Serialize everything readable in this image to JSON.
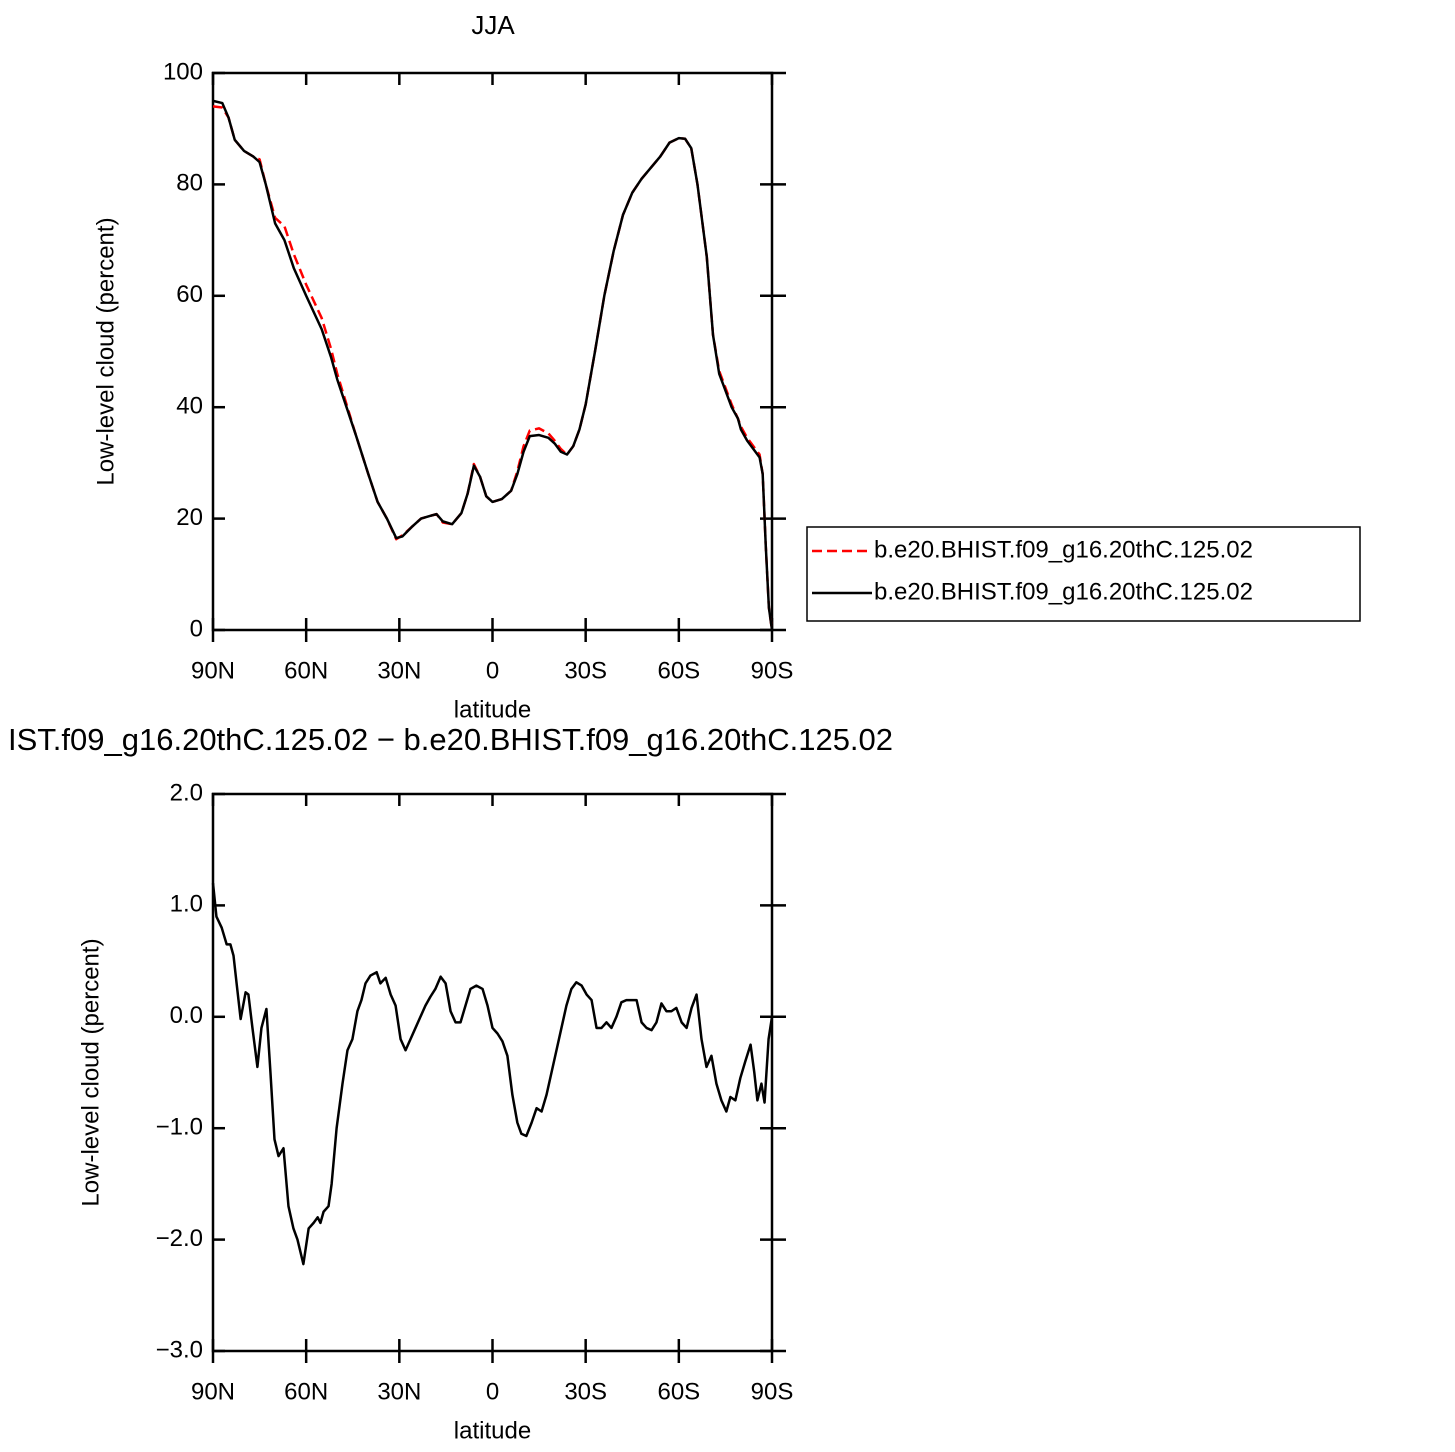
{
  "chart_data": [
    {
      "type": "line",
      "title": "JJA",
      "xlabel": "latitude",
      "ylabel": "Low-level cloud (percent)",
      "x": [
        90,
        87,
        85,
        83,
        80,
        77,
        75,
        73,
        70,
        67,
        64,
        60,
        55,
        52,
        50,
        47,
        44,
        40,
        37,
        34,
        31,
        29,
        26,
        23,
        20,
        18,
        16,
        13,
        10,
        8,
        6,
        4,
        2,
        0,
        -3,
        -6,
        -8,
        -10,
        -12,
        -15,
        -18,
        -20,
        -22,
        -24,
        -26,
        -28,
        -30,
        -33,
        -36,
        -39,
        -42,
        -45,
        -48,
        -51,
        -54,
        -57,
        -60,
        -62,
        -64,
        -66,
        -69,
        -71,
        -73,
        -75,
        -77,
        -79,
        -80,
        -82,
        -84,
        -86,
        -87,
        -88,
        -89,
        -90
      ],
      "series": [
        {
          "name": "b.e20.BHIST.f09_g16.20thC.125.02",
          "color": "#ff0000",
          "dash": true,
          "values": [
            94,
            93.8,
            92,
            88,
            86,
            85,
            84.5,
            80,
            74,
            72.5,
            67.5,
            62,
            56,
            50.5,
            46,
            40.5,
            35,
            28,
            23,
            20,
            16.3,
            17,
            18.5,
            20,
            20.5,
            20.8,
            19.3,
            19,
            21,
            24.5,
            29.8,
            27.5,
            24,
            23,
            23.5,
            25,
            28.5,
            33,
            35.8,
            36.2,
            35.3,
            34,
            32.5,
            31.5,
            33,
            36,
            40.5,
            50,
            60,
            68,
            74.5,
            78.5,
            81,
            83,
            85,
            87.5,
            88.3,
            88.2,
            86.5,
            80,
            67,
            53,
            46.5,
            43.5,
            40.5,
            38,
            36.5,
            34.5,
            33,
            31.5,
            28,
            15,
            4,
            0
          ]
        },
        {
          "name": "b.e20.BHIST.f09_g16.20thC.125.02",
          "color": "#000000",
          "dash": false,
          "values": [
            95,
            94.6,
            92,
            88,
            86,
            85,
            84,
            80,
            73,
            70,
            65,
            60,
            54,
            49,
            45,
            40,
            35,
            28,
            23,
            20,
            16.5,
            16.8,
            18.5,
            20,
            20.5,
            20.8,
            19.5,
            19,
            21,
            24.5,
            29.5,
            27.5,
            24,
            23,
            23.5,
            25,
            28,
            32,
            34.8,
            35,
            34.5,
            33.5,
            32,
            31.5,
            33,
            36,
            40.5,
            50,
            60,
            68,
            74.5,
            78.5,
            81,
            83,
            85,
            87.5,
            88.3,
            88.2,
            86.5,
            80,
            67,
            53,
            46,
            43,
            40,
            38,
            36,
            34,
            32.5,
            31,
            28,
            15,
            4,
            0
          ]
        }
      ],
      "xlim": [
        90,
        -90
      ],
      "xticks": [
        {
          "value": 90,
          "label": "90N"
        },
        {
          "value": 60,
          "label": "60N"
        },
        {
          "value": 30,
          "label": "30N"
        },
        0,
        {
          "value": -30,
          "label": "30S"
        },
        {
          "value": -60,
          "label": "60S"
        },
        {
          "value": -90,
          "label": "90S"
        }
      ],
      "ylim": [
        0,
        100
      ],
      "yticks": [
        0,
        20,
        40,
        60,
        80,
        100
      ],
      "legend": "right"
    },
    {
      "type": "line",
      "title": "IST.f09_g16.20thC.125.02 − b.e20.BHIST.f09_g16.20thC.125.02",
      "xlabel": "latitude",
      "ylabel": "Low-level cloud (percent)",
      "x": [
        90,
        88.9,
        87.2,
        85.6,
        84.4,
        83.4,
        82.4,
        81.1,
        79.5,
        78.6,
        77.3,
        75.7,
        74.4,
        72.8,
        71.5,
        70.2,
        68.9,
        67.3,
        65.7,
        64.1,
        62.8,
        60.9,
        59.2,
        57.6,
        56.3,
        55.4,
        54.4,
        52.8,
        51.8,
        50.2,
        48.3,
        46.7,
        45.1,
        43.5,
        42.2,
        40.9,
        39.3,
        37.3,
        36.1,
        34.4,
        32.8,
        31.2,
        29.6,
        28,
        26.4,
        24.8,
        23.2,
        21.6,
        20,
        18.4,
        16.7,
        15.1,
        13.5,
        11.9,
        10.3,
        8.7,
        7.1,
        5.2,
        3.2,
        1.6,
        0,
        -1.6,
        -3.2,
        -4.8,
        -6.4,
        -8,
        -9.3,
        -10.9,
        -12.6,
        -14.2,
        -15.8,
        -17.4,
        -19,
        -20.6,
        -22.2,
        -23.8,
        -25.4,
        -27,
        -28.7,
        -30.3,
        -31.9,
        -33.5,
        -35.1,
        -36.7,
        -38.3,
        -39.9,
        -41.5,
        -43.1,
        -44.8,
        -46.4,
        -48,
        -49.6,
        -51.2,
        -52.8,
        -54.4,
        -56,
        -57.6,
        -59.2,
        -60.9,
        -62.5,
        -64.1,
        -65.7,
        -67.3,
        -68.9,
        -70.5,
        -72.1,
        -73.7,
        -75.3,
        -76.6,
        -78.2,
        -79.8,
        -81.4,
        -83.1,
        -84.3,
        -85.3,
        -86.6,
        -87.6,
        -88.9,
        -90
      ],
      "series": [
        {
          "color": "#000000",
          "dash": false,
          "values": [
            1.2,
            0.9,
            0.8,
            0.65,
            0.65,
            0.55,
            0.3,
            -0.02,
            0.22,
            0.2,
            -0.1,
            -0.45,
            -0.1,
            0.07,
            -0.5,
            -1.1,
            -1.25,
            -1.18,
            -1.7,
            -1.9,
            -2.0,
            -2.22,
            -1.9,
            -1.85,
            -1.8,
            -1.85,
            -1.75,
            -1.7,
            -1.5,
            -1.0,
            -0.6,
            -0.3,
            -0.2,
            0.05,
            0.15,
            0.3,
            0.37,
            0.4,
            0.3,
            0.35,
            0.2,
            0.1,
            -0.2,
            -0.3,
            -0.2,
            -0.1,
            0.0,
            0.1,
            0.18,
            0.25,
            0.36,
            0.3,
            0.05,
            -0.05,
            -0.05,
            0.1,
            0.25,
            0.28,
            0.25,
            0.1,
            -0.1,
            -0.15,
            -0.22,
            -0.35,
            -0.7,
            -0.95,
            -1.05,
            -1.07,
            -0.95,
            -0.82,
            -0.85,
            -0.7,
            -0.5,
            -0.3,
            -0.1,
            0.1,
            0.25,
            0.31,
            0.28,
            0.2,
            0.15,
            -0.1,
            -0.1,
            -0.05,
            -0.1,
            0.0,
            0.13,
            0.15,
            0.15,
            0.15,
            -0.05,
            -0.1,
            -0.12,
            -0.05,
            0.12,
            0.05,
            0.05,
            0.08,
            -0.05,
            -0.1,
            0.08,
            0.2,
            -0.2,
            -0.45,
            -0.35,
            -0.6,
            -0.75,
            -0.85,
            -0.72,
            -0.75,
            -0.55,
            -0.4,
            -0.25,
            -0.5,
            -0.75,
            -0.6,
            -0.77,
            -0.2,
            0.0
          ]
        }
      ],
      "xlim": [
        90,
        -90
      ],
      "xticks": [
        {
          "value": 90,
          "label": "90N"
        },
        {
          "value": 60,
          "label": "60N"
        },
        {
          "value": 30,
          "label": "30N"
        },
        0,
        {
          "value": -30,
          "label": "30S"
        },
        {
          "value": -60,
          "label": "60S"
        },
        {
          "value": -90,
          "label": "90S"
        }
      ],
      "ylim": [
        -3,
        2
      ],
      "yticks": [
        {
          "value": -3,
          "label": "−3.0"
        },
        {
          "value": -2,
          "label": "−2.0"
        },
        {
          "value": -1,
          "label": "−1.0"
        },
        {
          "value": 0,
          "label": "0.0"
        },
        {
          "value": 1,
          "label": "1.0"
        },
        {
          "value": 2,
          "label": "2.0"
        }
      ]
    }
  ]
}
